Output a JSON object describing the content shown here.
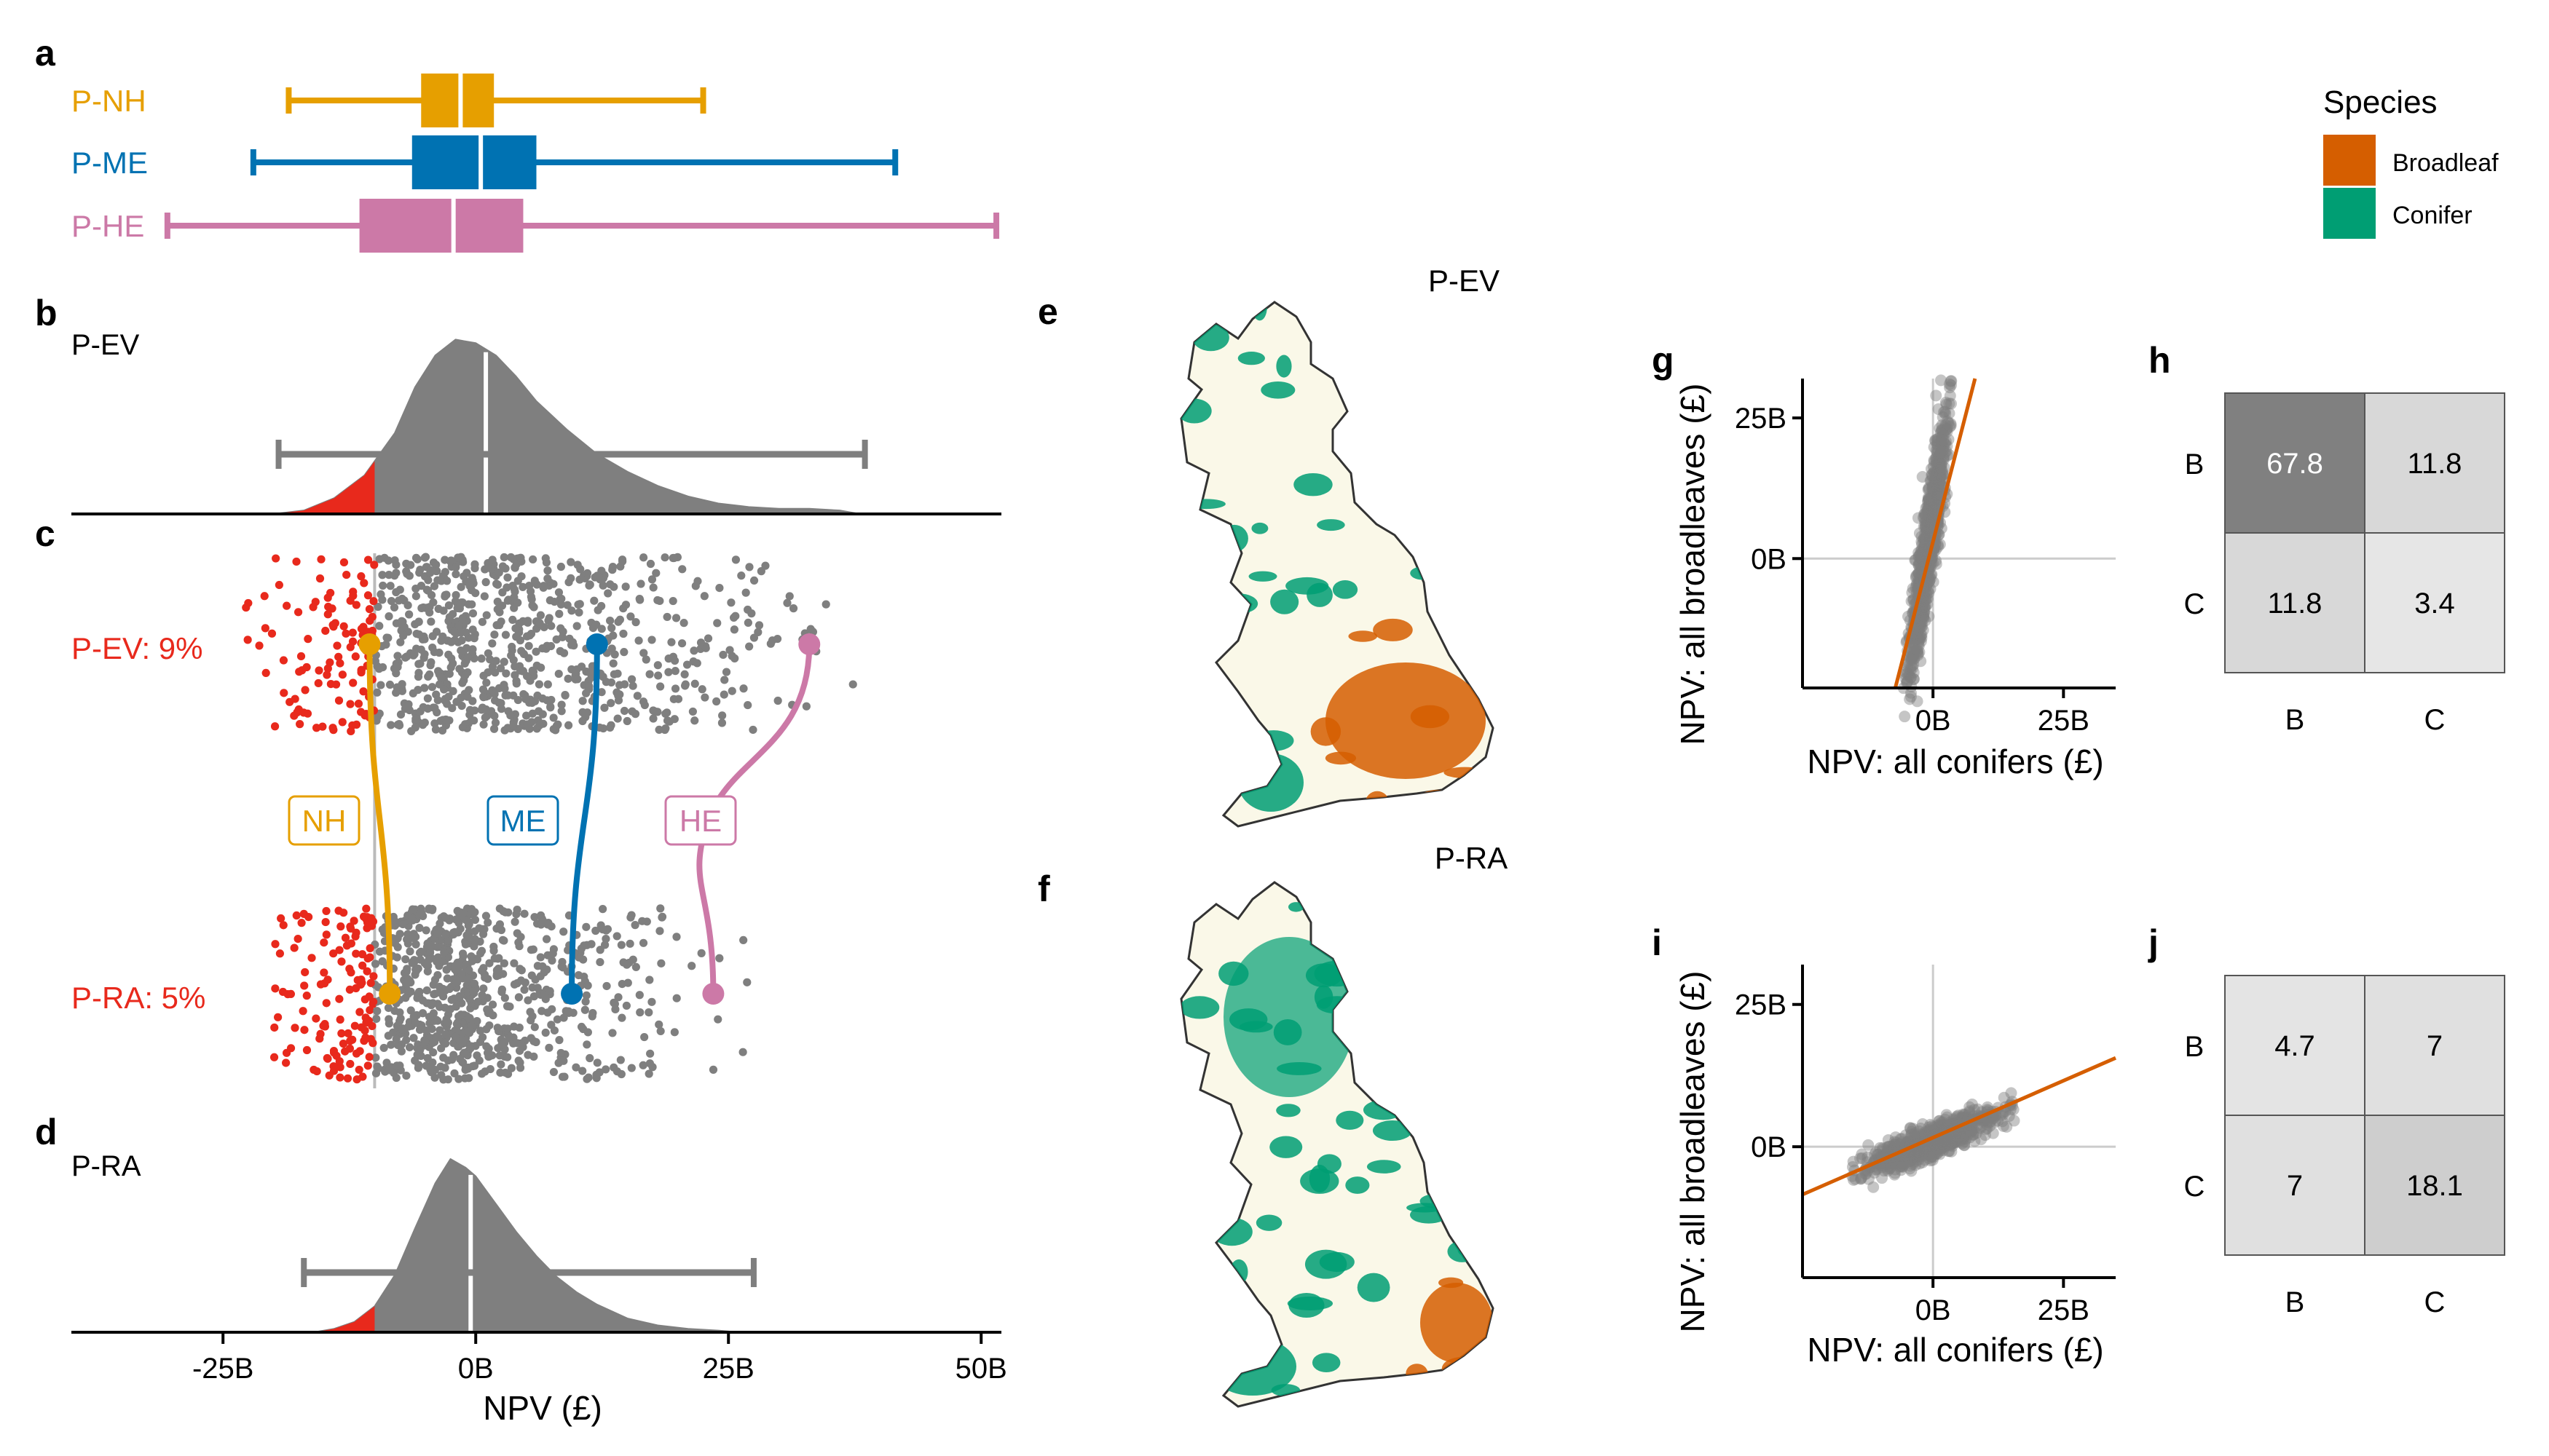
{
  "colors": {
    "nh": "#E69F00",
    "me": "#0072B2",
    "he": "#CC79A7",
    "gray": "#7f7f7f",
    "red": "#E8291C",
    "broadleaf": "#D55E00",
    "conifer": "#009E73",
    "land": "#FAF8E8"
  },
  "panel_labels": {
    "a": "a",
    "b": "b",
    "c": "c",
    "d": "d",
    "e": "e",
    "f": "f",
    "g": "g",
    "h": "h",
    "i": "i",
    "j": "j"
  },
  "legend": {
    "title": "Species",
    "items": [
      {
        "label": "Broadleaf",
        "color": "#D55E00"
      },
      {
        "label": "Conifer",
        "color": "#009E73"
      }
    ]
  },
  "chart_data": [
    {
      "panel": "a",
      "type": "box",
      "xlabel": "NPV (£)",
      "xlim": [
        -40,
        52
      ],
      "series": [
        {
          "name": "P-NH",
          "color": "#E69F00",
          "min": -18.5,
          "q1": -5.4,
          "median": -1.5,
          "q3": 1.8,
          "max": 22.5
        },
        {
          "name": "P-ME",
          "color": "#0072B2",
          "min": -22,
          "q1": -6.3,
          "median": 0.5,
          "q3": 6,
          "max": 41.5
        },
        {
          "name": "P-HE",
          "color": "#CC79A7",
          "min": -30.5,
          "q1": -11.5,
          "median": -2.2,
          "q3": 4.7,
          "max": 51.5
        }
      ]
    },
    {
      "panel": "b",
      "type": "area",
      "label": "P-EV",
      "x": [
        -20,
        -17,
        -14,
        -11,
        -8,
        -6,
        -4,
        -2,
        0,
        2,
        4,
        6,
        9,
        12,
        15,
        18,
        21,
        24,
        27,
        30,
        33,
        36,
        38
      ],
      "density": [
        0,
        0.02,
        0.09,
        0.22,
        0.46,
        0.72,
        0.9,
        0.99,
        0.97,
        0.9,
        0.78,
        0.64,
        0.48,
        0.34,
        0.24,
        0.16,
        0.1,
        0.06,
        0.04,
        0.03,
        0.03,
        0.02,
        0
      ],
      "shaded_below": -10,
      "median": 1,
      "interval": [
        -19.5,
        38.5
      ]
    },
    {
      "panel": "c",
      "type": "scatter",
      "rows": [
        {
          "label": "P-EV: 9%",
          "points": 900,
          "pct_below": 9
        },
        {
          "label": "P-RA: 5%",
          "points": 900,
          "pct_below": 5
        }
      ],
      "threshold": -10,
      "scenario_links": [
        {
          "name": "NH",
          "color": "#E69F00",
          "from": -10.5,
          "to": -8.5
        },
        {
          "name": "ME",
          "color": "#0072B2",
          "from": 12,
          "to": 9.5
        },
        {
          "name": "HE",
          "color": "#CC79A7",
          "from": 33,
          "to": 23.5
        }
      ]
    },
    {
      "panel": "d",
      "type": "area",
      "label": "P-RA",
      "x": [
        -16,
        -14,
        -12,
        -10,
        -8,
        -6,
        -4,
        -2.5,
        -1,
        0,
        2,
        4,
        6,
        8,
        10,
        12,
        15,
        18,
        21,
        24,
        26
      ],
      "density": [
        0,
        0.02,
        0.06,
        0.15,
        0.33,
        0.6,
        0.86,
        1.0,
        0.95,
        0.9,
        0.74,
        0.58,
        0.44,
        0.32,
        0.23,
        0.16,
        0.08,
        0.04,
        0.02,
        0.01,
        0
      ],
      "shaded_below": -10,
      "median": -0.5,
      "interval": [
        -17,
        27.5
      ],
      "x_ticks": [
        -25,
        0,
        25,
        50
      ],
      "x_tick_labels": [
        "-25B",
        "0B",
        "25B",
        "50B"
      ]
    },
    {
      "panel": "e",
      "type": "map",
      "title": "P-EV"
    },
    {
      "panel": "f",
      "type": "map",
      "title": "P-RA"
    },
    {
      "panel": "g",
      "type": "scatter",
      "xlabel": "NPV: all conifers (£)",
      "ylabel": "NPV: all broadleaves (£)",
      "xlim": [
        -25,
        35
      ],
      "ylim": [
        -23,
        32
      ],
      "x_ticks": [
        0,
        25
      ],
      "x_tick_labels": [
        "0B",
        "25B"
      ],
      "y_ticks": [
        0,
        25
      ],
      "y_tick_labels": [
        "0B",
        "25B"
      ],
      "cloud": {
        "cx": -1,
        "cy": 2,
        "sx": 1.8,
        "sy": 11,
        "corr": 0.9
      },
      "fit_line": {
        "slope": 3.6,
        "intercept": 3
      }
    },
    {
      "panel": "h",
      "type": "heatmap",
      "rows": [
        "B",
        "C"
      ],
      "cols": [
        "B",
        "C"
      ],
      "values": [
        [
          67.8,
          11.8
        ],
        [
          11.8,
          3.4
        ]
      ]
    },
    {
      "panel": "i",
      "type": "scatter",
      "xlabel": "NPV: all conifers (£)",
      "ylabel": "NPV: all broadleaves (£)",
      "xlim": [
        -25,
        35
      ],
      "ylim": [
        -23,
        32
      ],
      "x_ticks": [
        0,
        25
      ],
      "x_tick_labels": [
        "0B",
        "25B"
      ],
      "y_ticks": [
        0,
        25
      ],
      "y_tick_labels": [
        "0B",
        "25B"
      ],
      "cloud": {
        "cx": 0,
        "cy": 1,
        "sx": 6,
        "sy": 2.6,
        "corr": 0.85
      },
      "fit_line": {
        "slope": 0.4,
        "intercept": 1.6
      }
    },
    {
      "panel": "j",
      "type": "heatmap",
      "rows": [
        "B",
        "C"
      ],
      "cols": [
        "B",
        "C"
      ],
      "values": [
        [
          4.7,
          7
        ],
        [
          7,
          18.1
        ]
      ]
    }
  ]
}
